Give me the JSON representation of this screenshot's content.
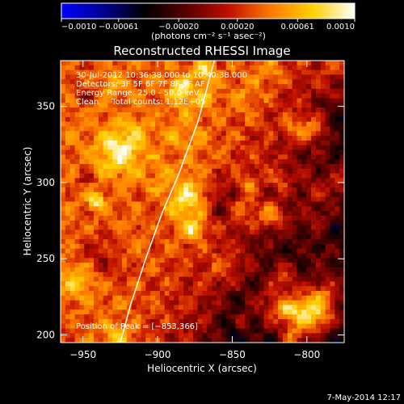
{
  "colorbar": {
    "ticks": [
      "−0.0010",
      "−0.00061",
      "−0.00020",
      "0.00020",
      "0.00061",
      "0.0010"
    ],
    "tick_values": [
      -0.001,
      -0.00061,
      -0.0002,
      0.0002,
      0.00061,
      0.001
    ],
    "range": [
      -0.001,
      0.001
    ],
    "units_label": "(photons cm⁻² s⁻¹ asec⁻²)",
    "stops": [
      "#0000ff",
      "#000090",
      "#000000",
      "#5a0000",
      "#c01000",
      "#ff7a00",
      "#ffd000",
      "#ffffff"
    ]
  },
  "chart_data": {
    "type": "heatmap",
    "title": "Reconstructed RHESSI Image",
    "xlabel": "Heliocentric X (arcsec)",
    "ylabel": "Heliocentric Y (arcsec)",
    "xlim": [
      -965,
      -775
    ],
    "ylim": [
      195,
      380
    ],
    "x_ticks": [
      -950,
      -900,
      -850,
      -800
    ],
    "x_tick_labels": [
      "−950",
      "−900",
      "−850",
      "−800"
    ],
    "y_ticks": [
      200,
      250,
      300,
      350
    ],
    "y_tick_labels": [
      "200",
      "250",
      "300",
      "350"
    ],
    "annotations": [
      "30-Jul-2012 10:36:38.000 to 10:40:38.000",
      "Detectors: 3F 5F 6F 7F 8F 9F AF",
      "Energy Range: 25.0 - 50.0 keV",
      "Clean     Total counts: 1.12E+05"
    ],
    "peak_label": "Position of Peak = [−853,366]",
    "peak": [
      -853,
      366
    ],
    "limb_curve": [
      [
        -925,
        195
      ],
      [
        -918,
        220
      ],
      [
        -908,
        250
      ],
      [
        -897,
        280
      ],
      [
        -886,
        305
      ],
      [
        -873,
        340
      ],
      [
        -862,
        380
      ]
    ],
    "footer_date": "7-May-2014 12:17"
  }
}
